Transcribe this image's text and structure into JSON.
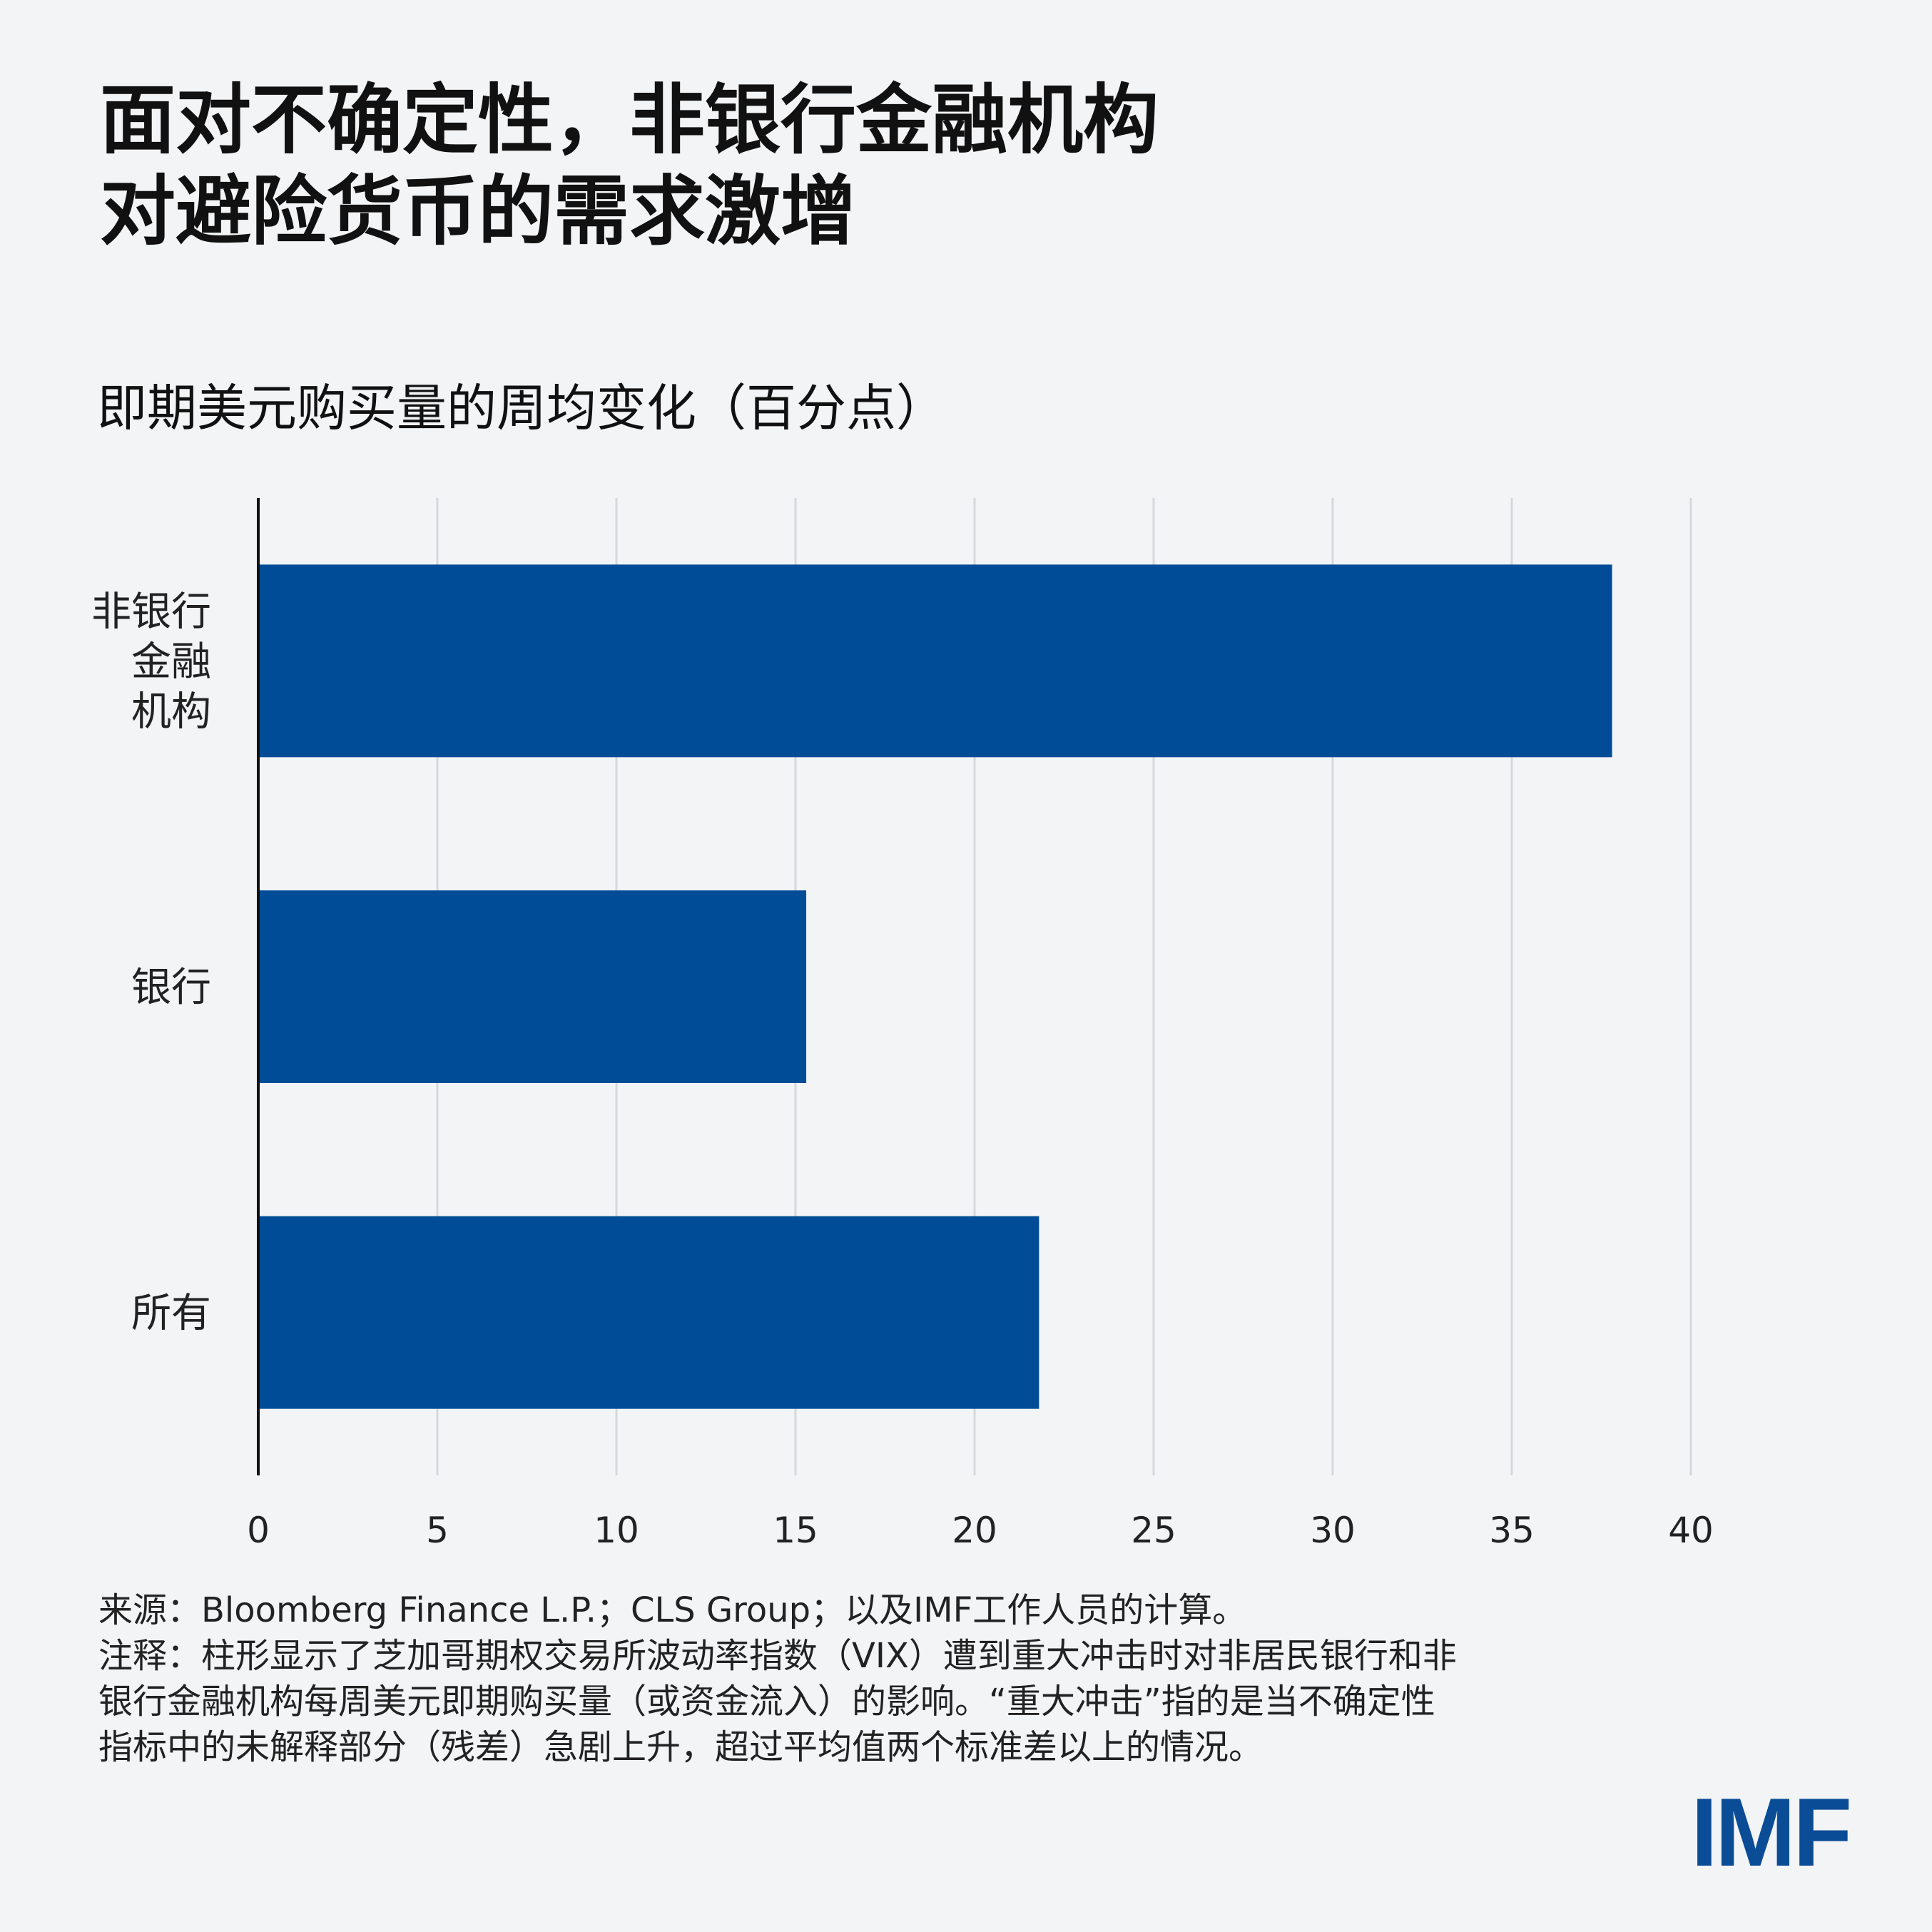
{
  "title": {
    "line1": "面对不确定性，非银行金融机构",
    "line2": "对避险货币的需求激增"
  },
  "chart_data": {
    "type": "bar",
    "orientation": "horizontal",
    "subtitle": "即期美元购买量的周均变化（百分点）",
    "categories": [
      [
        "非银行",
        "金融",
        "机构"
      ],
      [
        "银行"
      ],
      [
        "所有"
      ]
    ],
    "values": [
      37.8,
      15.3,
      21.8
    ],
    "xlim": [
      0,
      40
    ],
    "xticks": [
      "0",
      "5",
      "10",
      "15",
      "20",
      "25",
      "30",
      "35",
      "40"
    ],
    "xtick_values": [
      0,
      5,
      10,
      15,
      20,
      25,
      30,
      35,
      40
    ],
    "bar_color": "#004c97",
    "grid": true
  },
  "footer": {
    "source": "来源：Bloomberg Finance L.P.；CLS Group；以及IMF工作人员的计算。",
    "note_line1": "注释：柱形显示了芝加哥期权交易所波动率指数（VIX）遭到重大冲击时对非居民银行和非",
    "note_line2": "银行金融机构每周美元即期购买量（或资金流入）的影响。“重大冲击”指的是当不确定性",
    "note_line3": "指标中的未解释部分（残差）急剧上升，超过平均值两个标准差以上的情况。"
  },
  "logo": "IMF"
}
